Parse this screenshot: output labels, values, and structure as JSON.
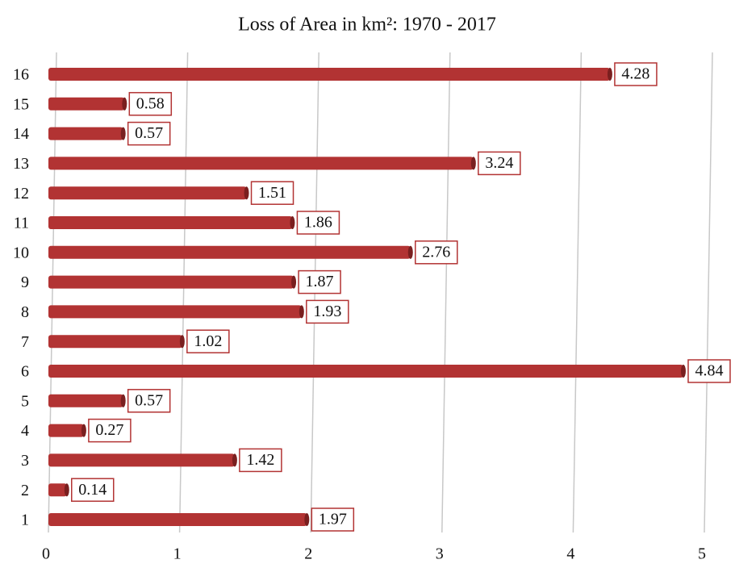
{
  "chart_data": {
    "type": "bar",
    "orientation": "horizontal",
    "title": "Loss of Area in km²: 1970 - 2017",
    "categories": [
      "1",
      "2",
      "3",
      "4",
      "5",
      "6",
      "7",
      "8",
      "9",
      "10",
      "11",
      "12",
      "13",
      "14",
      "15",
      "16"
    ],
    "values": [
      1.97,
      0.14,
      1.42,
      0.27,
      0.57,
      4.84,
      1.02,
      1.93,
      1.87,
      2.76,
      1.86,
      1.51,
      3.24,
      0.57,
      0.58,
      4.28
    ],
    "color": "#b23333",
    "xlim": [
      0,
      5
    ],
    "xticks": [
      0,
      1,
      2,
      3,
      4,
      5
    ],
    "grid": true
  }
}
